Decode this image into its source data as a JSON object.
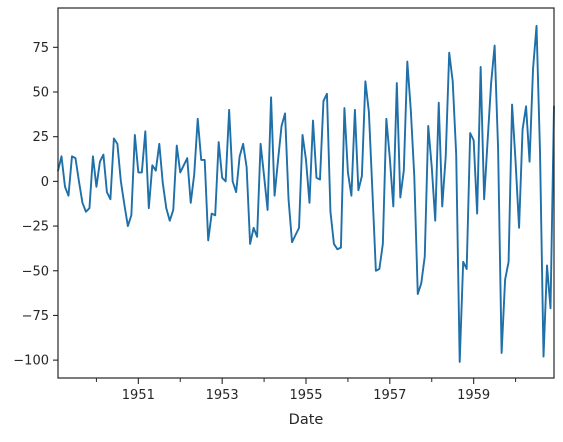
{
  "chart_data": {
    "type": "line",
    "title": "",
    "xlabel": "Date",
    "ylabel": "",
    "xlim": [
      "1949-02",
      "1960-12"
    ],
    "ylim": [
      -110,
      97
    ],
    "grid": false,
    "legend": "none",
    "xticks": [
      "1951",
      "1953",
      "1955",
      "1957",
      "1959"
    ],
    "x_minor_ticks": [
      "1950",
      "1952",
      "1954",
      "1956",
      "1958",
      "1960"
    ],
    "yticks": [
      75,
      50,
      25,
      0,
      -25,
      -50,
      -75,
      -100
    ],
    "series": [
      {
        "color": "#1f6fa8",
        "start": "1949-02",
        "frequency": "monthly",
        "values": [
          6,
          14,
          -3,
          -8,
          14,
          13,
          0,
          -12,
          -17,
          -15,
          14,
          -3,
          11,
          15,
          -6,
          -10,
          24,
          21,
          0,
          -13,
          -25,
          -19,
          26,
          5,
          5,
          28,
          -15,
          9,
          6,
          21,
          -1,
          -15,
          -22,
          -16,
          20,
          5,
          9,
          13,
          -12,
          4,
          35,
          12,
          12,
          -33,
          -18,
          -19,
          22,
          2,
          0,
          40,
          0,
          -6,
          14,
          21,
          8,
          -35,
          -26,
          -31,
          21,
          3,
          -16,
          47,
          -8,
          12,
          31,
          38,
          -10,
          -34,
          -30,
          -26,
          26,
          12,
          -12,
          34,
          2,
          1,
          45,
          49,
          -17,
          -35,
          -38,
          -37,
          41,
          5,
          -8,
          40,
          -5,
          3,
          56,
          39,
          -5,
          -50,
          -49,
          -35,
          35,
          13,
          -14,
          55,
          -9,
          6,
          67,
          40,
          3,
          -63,
          -57,
          -42,
          31,
          8,
          -22,
          44,
          -14,
          14,
          72,
          56,
          15,
          -101,
          -45,
          -49,
          27,
          23,
          -18,
          64,
          -10,
          23,
          55,
          76,
          18,
          -96,
          -55,
          -45,
          43,
          11,
          -26,
          29,
          42,
          11,
          63,
          87,
          16,
          -98,
          -47,
          -71,
          42
        ]
      }
    ]
  }
}
